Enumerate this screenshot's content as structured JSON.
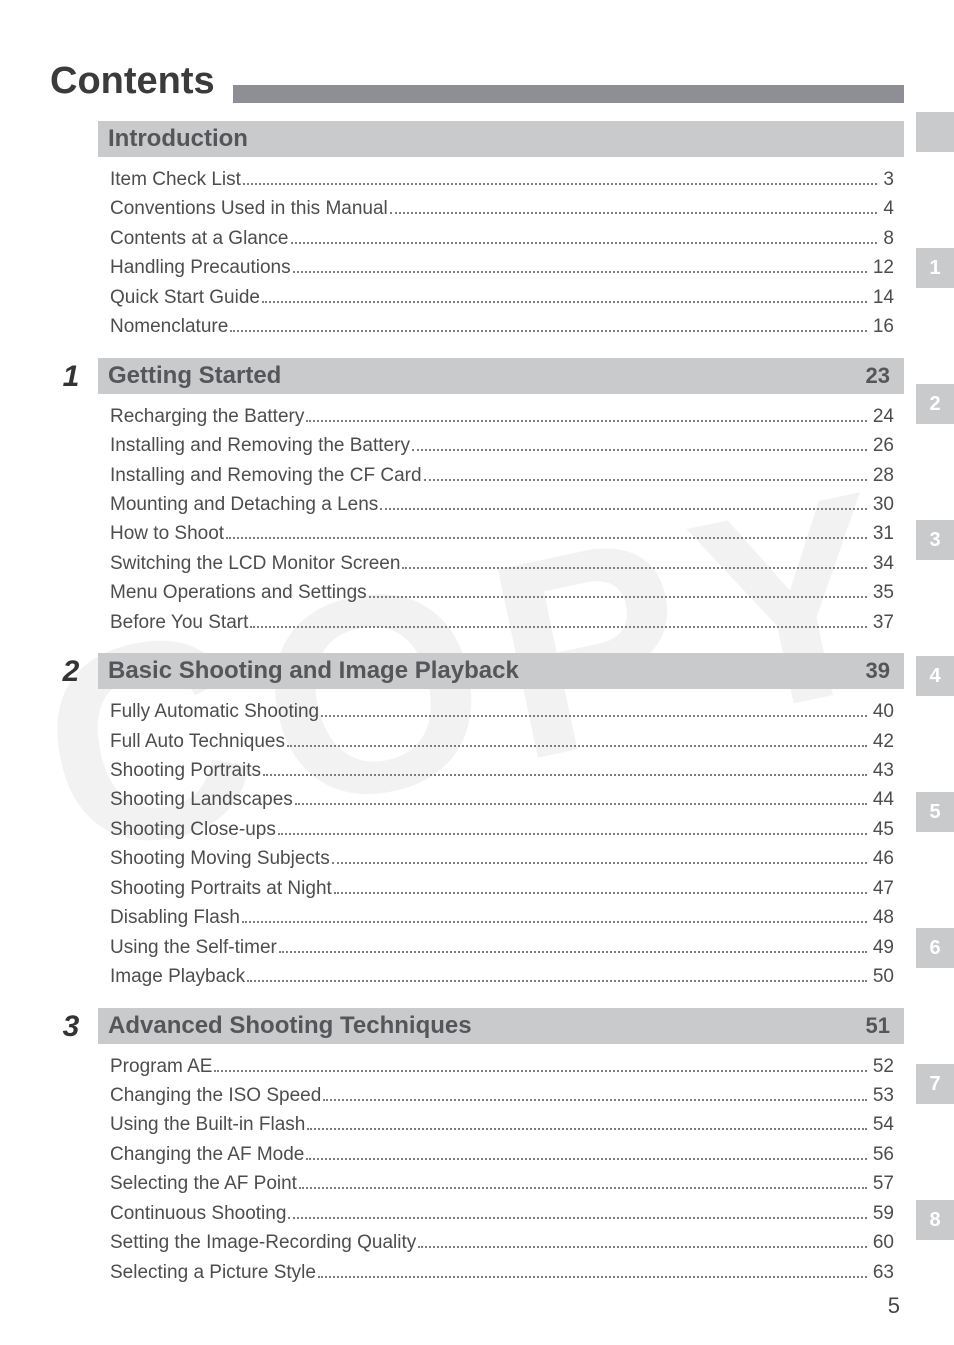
{
  "page": {
    "title": "Contents",
    "watermark": "COPY",
    "page_number": "5",
    "colors": {
      "rule_gray": "#8d8f95",
      "header_gray": "#c9cacc",
      "text_gray": "#4d4d4d",
      "title_gray": "#3b3b3b"
    },
    "font_sizes": {
      "title": 38,
      "section_title": 24,
      "entry": 19,
      "side_tab": 20,
      "page_number": 22
    }
  },
  "side_tabs": [
    "",
    "1",
    "2",
    "3",
    "4",
    "5",
    "6",
    "7",
    "8"
  ],
  "sections": [
    {
      "number": "",
      "title": "Introduction",
      "start_page": "",
      "entries": [
        {
          "label": "Item Check List",
          "page": "3"
        },
        {
          "label": "Conventions Used in this Manual",
          "page": "4"
        },
        {
          "label": "Contents at a Glance",
          "page": "8"
        },
        {
          "label": "Handling Precautions",
          "page": "12"
        },
        {
          "label": "Quick Start Guide",
          "page": "14"
        },
        {
          "label": "Nomenclature",
          "page": "16"
        }
      ]
    },
    {
      "number": "1",
      "title": "Getting Started",
      "start_page": "23",
      "entries": [
        {
          "label": "Recharging the Battery",
          "page": "24"
        },
        {
          "label": "Installing and Removing the Battery",
          "page": "26"
        },
        {
          "label": "Installing and Removing the CF Card",
          "page": "28"
        },
        {
          "label": "Mounting and Detaching a Lens",
          "page": "30"
        },
        {
          "label": "How to Shoot",
          "page": "31"
        },
        {
          "label": "Switching the LCD Monitor Screen",
          "page": "34"
        },
        {
          "label": "Menu Operations and Settings",
          "page": "35"
        },
        {
          "label": "Before You Start",
          "page": "37"
        }
      ]
    },
    {
      "number": "2",
      "title": "Basic Shooting and Image Playback",
      "start_page": "39",
      "entries": [
        {
          "label": "Fully Automatic Shooting",
          "page": "40"
        },
        {
          "label": "Full Auto Techniques",
          "page": "42"
        },
        {
          "label": "Shooting Portraits",
          "page": "43"
        },
        {
          "label": "Shooting Landscapes",
          "page": "44"
        },
        {
          "label": "Shooting Close-ups",
          "page": "45"
        },
        {
          "label": "Shooting Moving Subjects",
          "page": "46"
        },
        {
          "label": "Shooting Portraits at Night",
          "page": "47"
        },
        {
          "label": "Disabling Flash",
          "page": "48"
        },
        {
          "label": "Using the Self-timer",
          "page": "49"
        },
        {
          "label": "Image Playback",
          "page": "50"
        }
      ]
    },
    {
      "number": "3",
      "title": "Advanced Shooting Techniques",
      "start_page": "51",
      "entries": [
        {
          "label": "Program AE",
          "page": "52"
        },
        {
          "label": "Changing the ISO Speed",
          "page": "53"
        },
        {
          "label": "Using the Built-in Flash",
          "page": "54"
        },
        {
          "label": "Changing the AF Mode",
          "page": "56"
        },
        {
          "label": "Selecting the AF Point",
          "page": "57"
        },
        {
          "label": "Continuous Shooting",
          "page": "59"
        },
        {
          "label": "Setting the Image-Recording Quality",
          "page": "60"
        },
        {
          "label": "Selecting a Picture Style",
          "page": "63"
        }
      ]
    }
  ]
}
